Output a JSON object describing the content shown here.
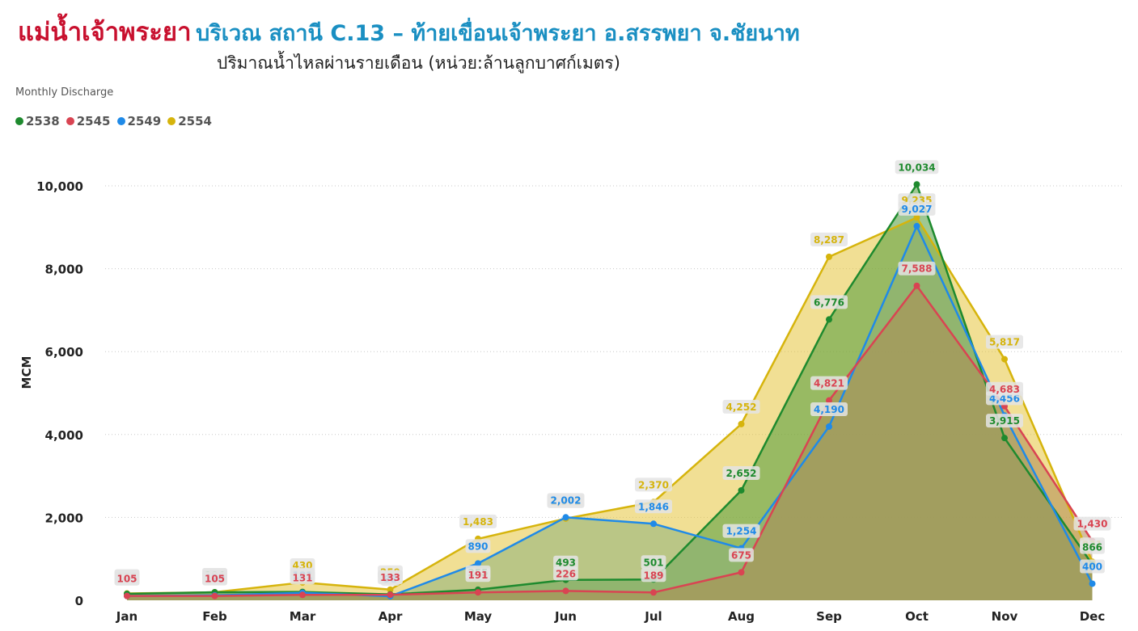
{
  "title": {
    "part1": "แม่น้ำเจ้าพระยา",
    "part2": "บริเวณ สถานี C.13 – ท้ายเขื่อนเจ้าพระยา อ.สรรพยา จ.ชัยนาท"
  },
  "subtitle": "ปริมาณน้ำไหลผ่านรายเดือน (หน่วย:ล้านลูกบาศก์เมตร)",
  "visual_title": "Monthly Discharge",
  "chart_data": {
    "type": "area",
    "title": "Monthly Discharge",
    "xlabel": "",
    "ylabel": "MCM",
    "ylim": [
      0,
      10000
    ],
    "yticks": [
      0,
      2000,
      4000,
      6000,
      8000,
      10000
    ],
    "ytick_labels": [
      "0",
      "2,000",
      "4,000",
      "6,000",
      "8,000",
      "10,000"
    ],
    "grid": true,
    "legend_position": "top-left",
    "categories": [
      "Jan",
      "Feb",
      "Mar",
      "Apr",
      "May",
      "Jun",
      "Jul",
      "Aug",
      "Sep",
      "Oct",
      "Nov",
      "Dec"
    ],
    "series": [
      {
        "name": "2538",
        "color": "#1e8a2e",
        "fill": "#4e9a3a",
        "values": [
          156,
          194,
          202,
          143,
          255,
          493,
          501,
          2652,
          6776,
          10034,
          3915,
          866
        ]
      },
      {
        "name": "2545",
        "color": "#d94452",
        "fill": "#b08a52",
        "values": [
          105,
          105,
          131,
          133,
          191,
          226,
          189,
          675,
          4821,
          7588,
          4683,
          1430
        ]
      },
      {
        "name": "2549",
        "color": "#1f8ae8",
        "fill": "#8cb07a",
        "values": [
          105,
          120,
          181,
          98,
          890,
          2002,
          1846,
          1254,
          4190,
          9027,
          4456,
          400
        ]
      },
      {
        "name": "2554",
        "color": "#d6b40c",
        "fill": "#e6c43c",
        "values": [
          165,
          194,
          430,
          259,
          1483,
          1972,
          2370,
          4252,
          8287,
          9235,
          5817,
          931
        ]
      }
    ]
  }
}
